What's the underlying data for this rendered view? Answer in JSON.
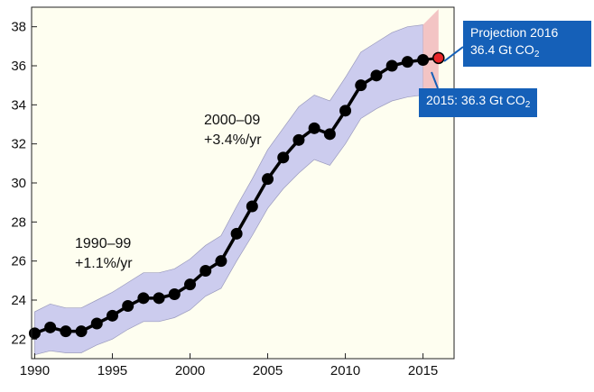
{
  "chart_data": {
    "type": "line",
    "title": "",
    "xlabel": "",
    "ylabel": "",
    "xlim": [
      1989.8,
      2017
    ],
    "ylim": [
      21,
      39
    ],
    "x_ticks": [
      "1990",
      "1995",
      "2000",
      "2005",
      "2010",
      "2015"
    ],
    "y_ticks": [
      "22",
      "24",
      "26",
      "28",
      "30",
      "32",
      "34",
      "36",
      "38"
    ],
    "grid": false,
    "series": [
      {
        "x": [
          1990,
          1991,
          1992,
          1993,
          1994,
          1995,
          1996,
          1997,
          1998,
          1999,
          2000,
          2001,
          2002,
          2003,
          2004,
          2005,
          2006,
          2007,
          2008,
          2009,
          2010,
          2011,
          2012,
          2013,
          2014,
          2015
        ],
        "y": [
          22.3,
          22.6,
          22.4,
          22.4,
          22.8,
          23.2,
          23.7,
          24.1,
          24.1,
          24.3,
          24.8,
          25.5,
          26.0,
          27.4,
          28.8,
          30.2,
          31.3,
          32.2,
          32.8,
          32.5,
          33.7,
          35.0,
          35.5,
          36.0,
          36.2,
          36.3
        ],
        "color": "#000000"
      }
    ],
    "uncertainty_band": {
      "x": [
        1990,
        1991,
        1992,
        1993,
        1994,
        1995,
        1996,
        1997,
        1998,
        1999,
        2000,
        2001,
        2002,
        2003,
        2004,
        2005,
        2006,
        2007,
        2008,
        2009,
        2010,
        2011,
        2012,
        2013,
        2014,
        2015
      ],
      "lower": [
        21.2,
        21.4,
        21.3,
        21.3,
        21.7,
        22.0,
        22.5,
        22.9,
        22.9,
        23.1,
        23.5,
        24.2,
        24.6,
        26.0,
        27.3,
        28.7,
        29.7,
        30.5,
        31.2,
        30.9,
        32.0,
        33.3,
        33.8,
        34.2,
        34.4,
        34.5
      ],
      "upper": [
        23.4,
        23.8,
        23.6,
        23.6,
        24.0,
        24.4,
        24.9,
        25.4,
        25.4,
        25.6,
        26.1,
        26.8,
        27.3,
        28.8,
        30.2,
        31.7,
        32.8,
        33.9,
        34.5,
        34.2,
        35.4,
        36.7,
        37.2,
        37.7,
        38.0,
        38.1
      ],
      "color": "#ccccee"
    },
    "projection": {
      "x": 2016,
      "y": 36.4,
      "band_lower": 34.3,
      "band_upper": 38.9,
      "color": "#e8262a",
      "band_color": "#f3c4c4"
    },
    "annotations": [
      {
        "line1": "1990–99",
        "line2": "+1.1%/yr"
      },
      {
        "line1": "2000–09",
        "line2": "+3.4%/yr"
      }
    ],
    "callouts": {
      "projection": {
        "line1": "Projection 2016",
        "line2_pre": "36.4 Gt CO",
        "sub": "2"
      },
      "year2015": {
        "text_pre": "2015: 36.3 Gt CO",
        "sub": "2"
      }
    },
    "plot_background": "#fefef0",
    "callout_color": "#1560b8"
  }
}
